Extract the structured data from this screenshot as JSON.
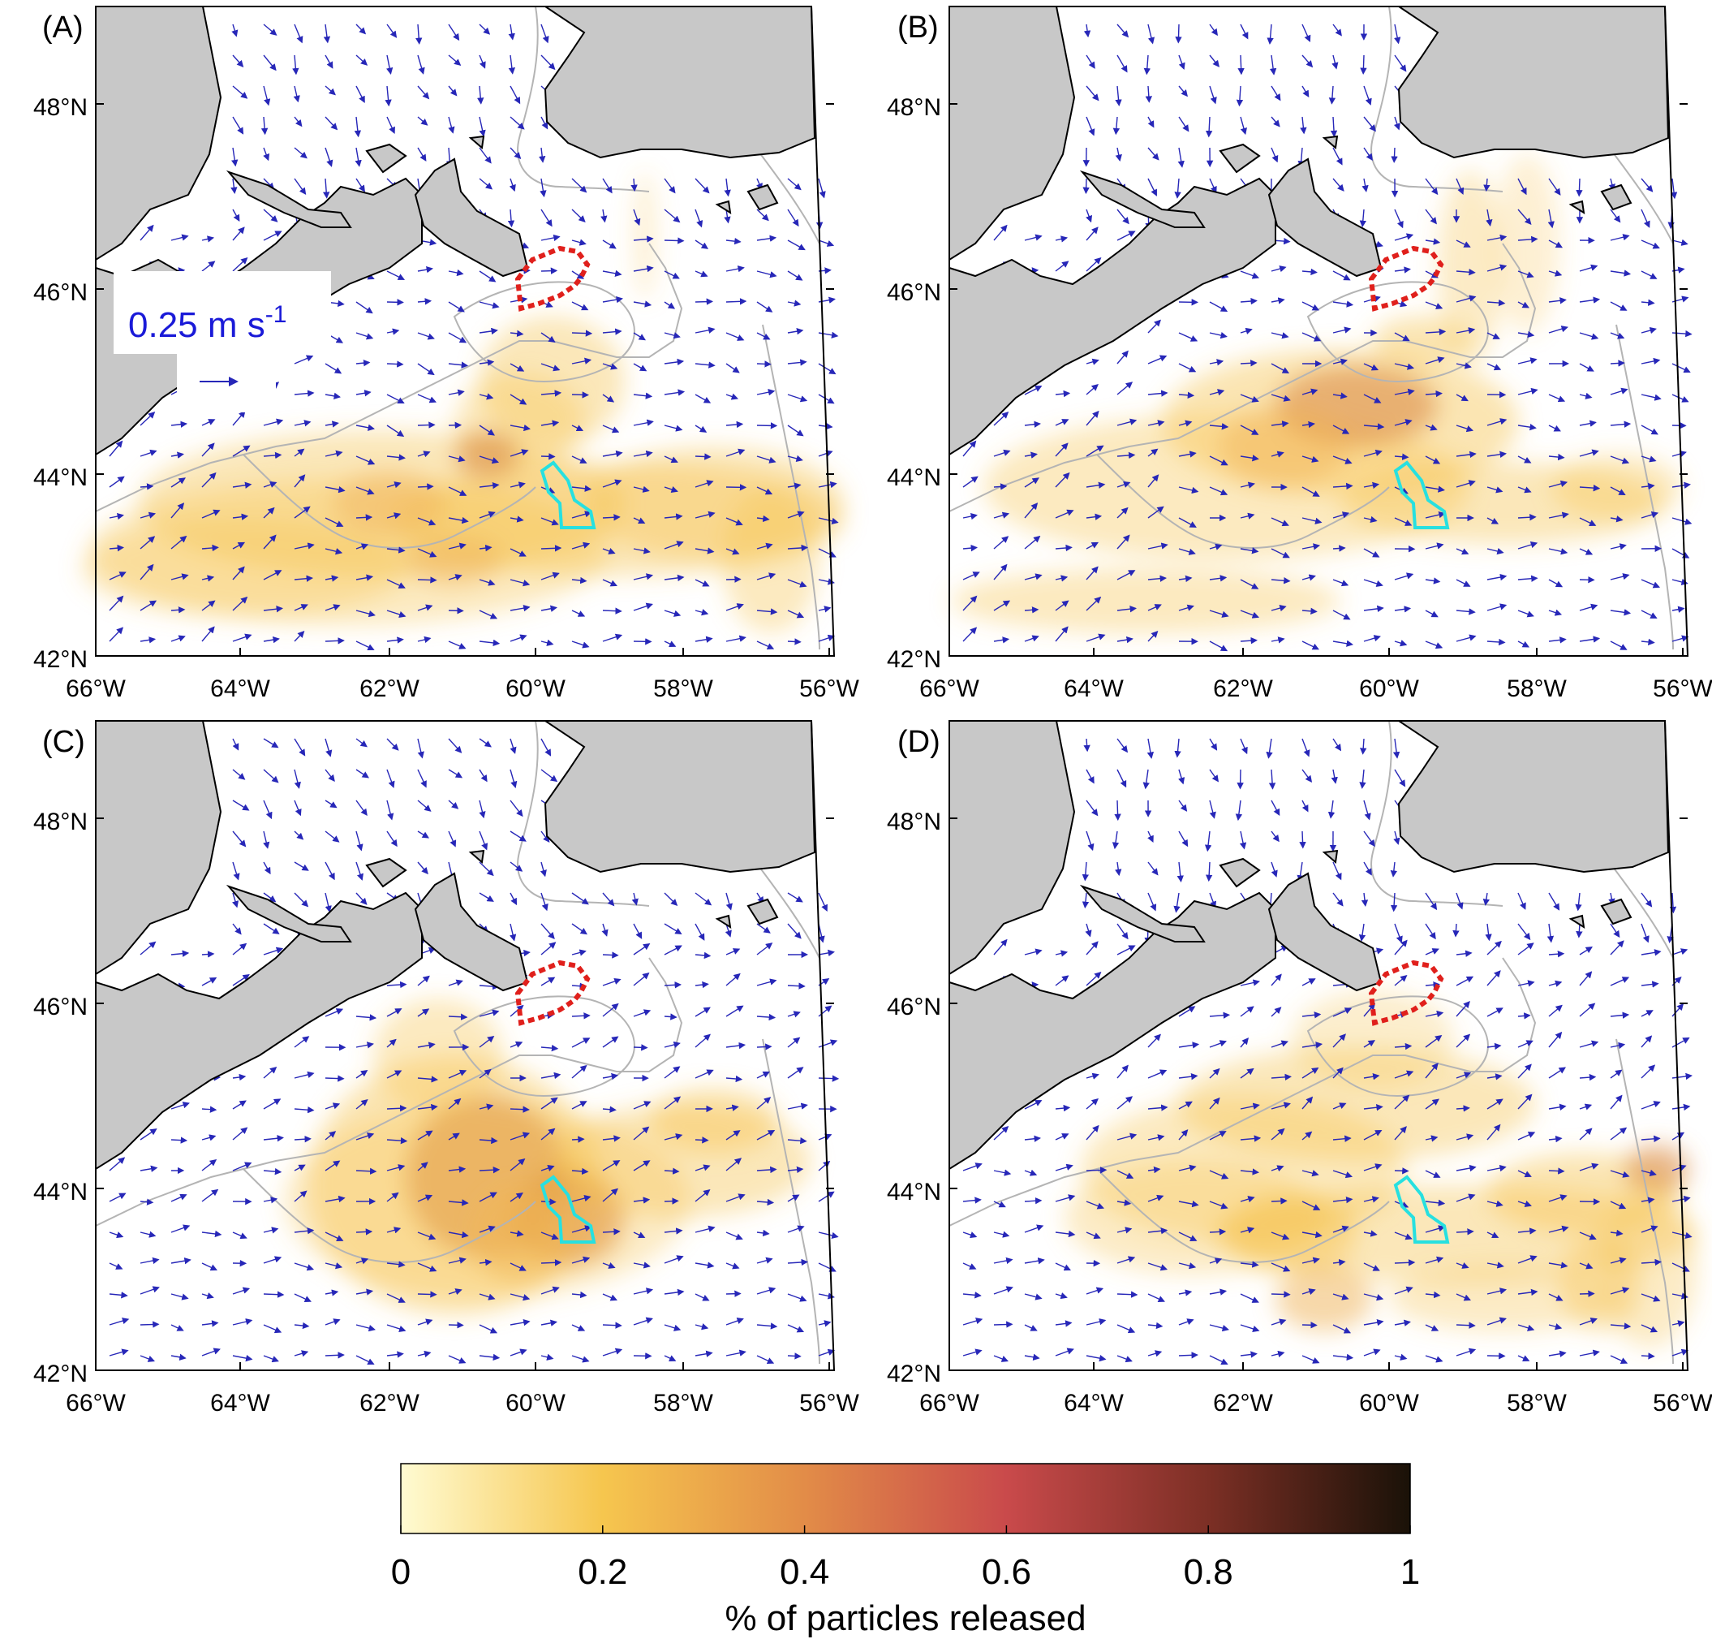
{
  "panels": [
    {
      "id": "A",
      "label": "(A)"
    },
    {
      "id": "B",
      "label": "(B)"
    },
    {
      "id": "C",
      "label": "(C)"
    },
    {
      "id": "D",
      "label": "(D)"
    }
  ],
  "latitude_labels": [
    "48°N",
    "46°N",
    "44°N",
    "42°N"
  ],
  "longitude_labels": [
    "66°W",
    "64°W",
    "62°W",
    "60°W",
    "58°W",
    "56°W"
  ],
  "velocity_scale": {
    "value": "0.25",
    "unit": "m s",
    "exponent": "-1"
  },
  "colorbar": {
    "ticks": [
      "0",
      "0.2",
      "0.4",
      "0.6",
      "0.8",
      "1"
    ],
    "label": "% of particles released",
    "colors": [
      "#fffbd2",
      "#f6c64e",
      "#e28c48",
      "#c94a4b",
      "#7c2f25",
      "#1a1208"
    ]
  },
  "colors": {
    "land": "#c8c8c8",
    "current_arrows": "#2727b8",
    "isobath": "#b4b4b4",
    "release_area_outline": "#e0201c",
    "target_area_outline": "#27e0e0",
    "density_fill": "#f5c24a"
  },
  "chart_data": {
    "type": "heatmap",
    "colorbar_range": [
      0,
      1
    ],
    "colorbar_label": "% of particles released",
    "lon_range": [
      -66,
      -55
    ],
    "lat_range": [
      42,
      49
    ]
  }
}
